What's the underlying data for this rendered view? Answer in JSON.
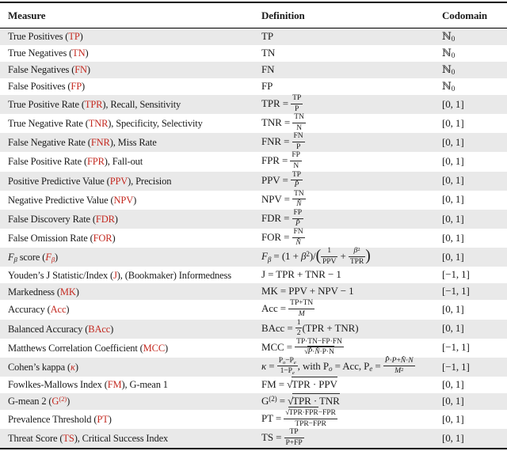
{
  "colors": {
    "accent_red": "#c42a21",
    "row_stripe": "#e9e9e9",
    "rule_black": "#000000"
  },
  "table": {
    "columns": [
      {
        "label": "Measure"
      },
      {
        "label": "Definition"
      },
      {
        "label": "Codomain"
      }
    ],
    "rows": [
      {
        "m": "True Positives (<span class='rd'>TP</span>)",
        "d": "TP",
        "c": "ℕ<sub>0</sub>"
      },
      {
        "m": "True Negatives (<span class='rd'>TN</span>)",
        "d": "TN",
        "c": "ℕ<sub>0</sub>"
      },
      {
        "m": "False Negatives (<span class='rd'>FN</span>)",
        "d": "FN",
        "c": "ℕ<sub>0</sub>"
      },
      {
        "m": "False Positives (<span class='rd'>FP</span>)",
        "d": "FP",
        "c": "ℕ<sub>0</sub>"
      },
      {
        "m": "True Positive Rate (<span class='rd'>TPR</span>), Recall, Sensitivity",
        "d": "TPR = <span class='fr'><span class='nu'>TP</span><span class='de'>P</span></span>",
        "c": "[0, 1]"
      },
      {
        "m": "True Negative Rate (<span class='rd'>TNR</span>), Specificity, Selectivity",
        "d": "TNR = <span class='fr'><span class='nu'>TN</span><span class='de'>N</span></span>",
        "c": "[0, 1]"
      },
      {
        "m": "False Negative Rate (<span class='rd'>FNR</span>), Miss Rate",
        "d": "FNR = <span class='fr'><span class='nu'>FN</span><span class='de'>P</span></span>",
        "c": "[0, 1]"
      },
      {
        "m": "False Positive Rate (<span class='rd'>FPR</span>), Fall-out",
        "d": "FPR = <span class='fr'><span class='nu'>FP</span><span class='de'>N</span></span>",
        "c": "[0, 1]"
      },
      {
        "m": "Positive Predictive Value (<span class='rd'>PPV</span>), Precision",
        "d": "PPV = <span class='fr'><span class='nu'>TP</span><span class='de'><i>P̂</i></span></span>",
        "c": "[0, 1]"
      },
      {
        "m": "Negative Predictive Value (<span class='rd'>NPV</span>)",
        "d": "NPV = <span class='fr'><span class='nu'>TN</span><span class='de'><i>N̂</i></span></span>",
        "c": "[0, 1]"
      },
      {
        "m": "False Discovery Rate (<span class='rd'>FDR</span>)",
        "d": "FDR = <span class='fr'><span class='nu'>FP</span><span class='de'><i>P̂</i></span></span>",
        "c": "[0, 1]"
      },
      {
        "m": "False Omission Rate (<span class='rd'>FOR</span>)",
        "d": "FOR = <span class='fr'><span class='nu'>FN</span><span class='de'><i>N̂</i></span></span>",
        "c": "[0, 1]"
      },
      {
        "m": "<i>F<sub>β</sub></i> score (<span class='rd'><i>F<sub>β</sub></i></span>)",
        "d": "<i>F<sub>β</sub></i> = (1 + <i>β</i><sup>2</sup>)/<span class='bp'>(</span><span class='fr'><span class='nu'>1</span><span class='de'>PPV</span></span> + <span class='fr'><span class='nu'><i>β</i><sup>2</sup></span><span class='de'>TPR</span></span><span class='bp'>)</span>",
        "c": "[0, 1]"
      },
      {
        "m": "Youden’s J Statistic/Index (<span class='rd'>J</span>), (Bookmaker) Informedness",
        "d": "J = TPR + TNR − 1",
        "c": "[−1, 1]"
      },
      {
        "m": "Markedness (<span class='rd'>MK</span>)",
        "d": "MK = PPV + NPV − 1",
        "c": "[−1, 1]"
      },
      {
        "m": "Accuracy (<span class='rd'>Acc</span>)",
        "d": "Acc = <span class='fr'><span class='nu'>TP+TN</span><span class='de'><i>M</i></span></span>",
        "c": "[0, 1]"
      },
      {
        "m": "Balanced Accuracy (<span class='rd'>BAcc</span>)",
        "d": "BAcc = <span class='fr'><span class='nu'>1</span><span class='de'>2</span></span>(TPR + TNR)",
        "c": "[0, 1]"
      },
      {
        "m": "Matthews Correlation Coefficient (<span class='rd'>MCC</span>)",
        "d": "MCC = <span class='fr'><span class='nu'>TP·TN−FP·FN</span><span class='de'><span class='sq'>√</span><span class='ov'><i>P̂</i>·<i>N̂</i>·P·N</span></span></span>",
        "c": "[−1, 1]"
      },
      {
        "m": "Cohen’s kappa (<span class='rd'><i>κ</i></span>)",
        "d": "<i>κ</i> = <span class='fr'><span class='nu'>P<sub><i>o</i></sub>−P<sub><i>e</i></sub></span><span class='de'>1−P<sub><i>e</i></sub></span></span>, with P<sub><i>o</i></sub> = Acc, P<sub><i>e</i></sub> = <span class='fr'><span class='nu'><i>P̂</i>·<i>P</i>+<i>N̂</i>·<i>N</i></span><span class='de'><i>M</i><sup>2</sup></span></span>",
        "c": "[−1, 1]"
      },
      {
        "m": "Fowlkes-Mallows Index (<span class='rd'>FM</span>), G-mean 1",
        "d": "FM = <span class='sq'>√</span><span class='ov'>TPR · PPV</span>",
        "c": "[0, 1]"
      },
      {
        "m": "G-mean 2 (<span class='rd'>G<sup>(2)</sup></span>)",
        "d": "G<sup>(2)</sup> = <span class='sq'>√</span><span class='ov'>TPR · TNR</span>",
        "c": "[0, 1]"
      },
      {
        "m": "Prevalence Threshold (<span class='rd'>PT</span>)",
        "d": "PT = <span class='fr'><span class='nu'><span class='sq'>√</span><span class='ov'>TPR·FPR</span>−FPR</span><span class='de'>TPR−FPR</span></span>",
        "c": "[0, 1]"
      },
      {
        "m": "Threat Score (<span class='rd'>TS</span>), Critical Success Index",
        "d": "TS = <span class='fr'><span class='nu'>TP</span><span class='de'>P+FP</span></span>",
        "c": "[0, 1]"
      }
    ]
  }
}
